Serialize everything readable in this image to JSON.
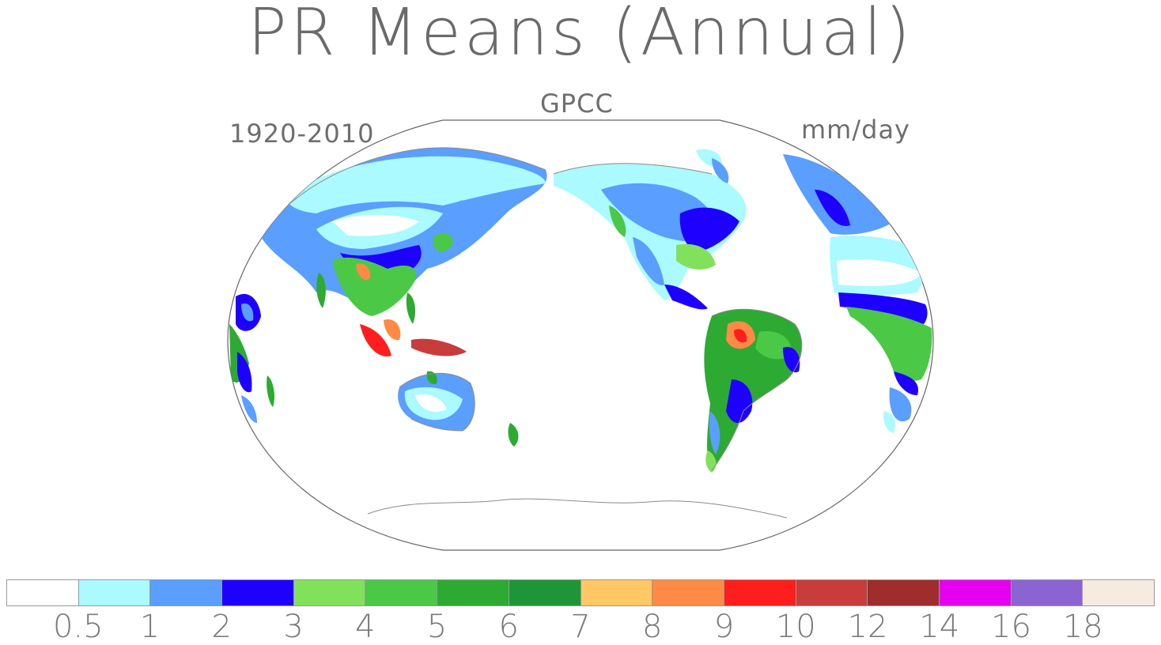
{
  "title": "PR Means (Annual)",
  "dataset": "GPCC",
  "period": "1920-2010",
  "units": "mm/day",
  "colors": {
    "ocean": "#ffffff",
    "coast": "#8a8a8a"
  },
  "colorbar": {
    "colors": [
      "#ffffff",
      "#aafaff",
      "#5a9eff",
      "#1e00ff",
      "#82e15a",
      "#4bc846",
      "#2daa32",
      "#1e9637",
      "#ffc864",
      "#ff8a46",
      "#ff1e1e",
      "#c83c3c",
      "#a02d2d",
      "#e600f0",
      "#8c64d2",
      "#f5ebe1"
    ],
    "labels": [
      "0.5",
      "1",
      "2",
      "3",
      "4",
      "5",
      "6",
      "7",
      "8",
      "9",
      "10",
      "12",
      "14",
      "16",
      "18"
    ]
  }
}
